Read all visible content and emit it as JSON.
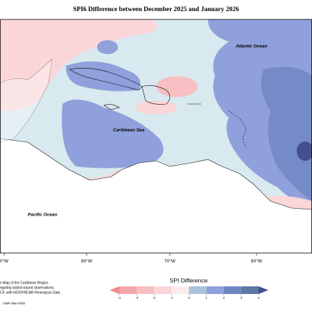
{
  "title": "SPI6 Difference between December 2025 and January 2026",
  "labels": {
    "atlantic": "Atlantic Ocean",
    "caribbean": "Caribbean Sea",
    "pacific": "Pacific Ocean"
  },
  "longitudes": [
    "0°W",
    "80°W",
    "70°W",
    "60°W"
  ],
  "footer": {
    "lines": [
      "n Map of the Caribbean Region",
      "egating station based observations,",
      "CF, with NCEP/NCAR Reanalysis Data."
    ],
    "credit": "CIMH Mar-2026"
  },
  "legend": {
    "title": "SPI Difference",
    "ticks": [
      -4,
      -3,
      -2,
      -1,
      0,
      1,
      2,
      3,
      4
    ],
    "colors": [
      "#f08a8e",
      "#f4a6aa",
      "#f7bfc2",
      "#fad6d8",
      "#fdeced",
      "#d8e9ef",
      "#a9c3dc",
      "#8fa0dc",
      "#6e86c2",
      "#5d79a3",
      "#454f8f"
    ]
  }
}
